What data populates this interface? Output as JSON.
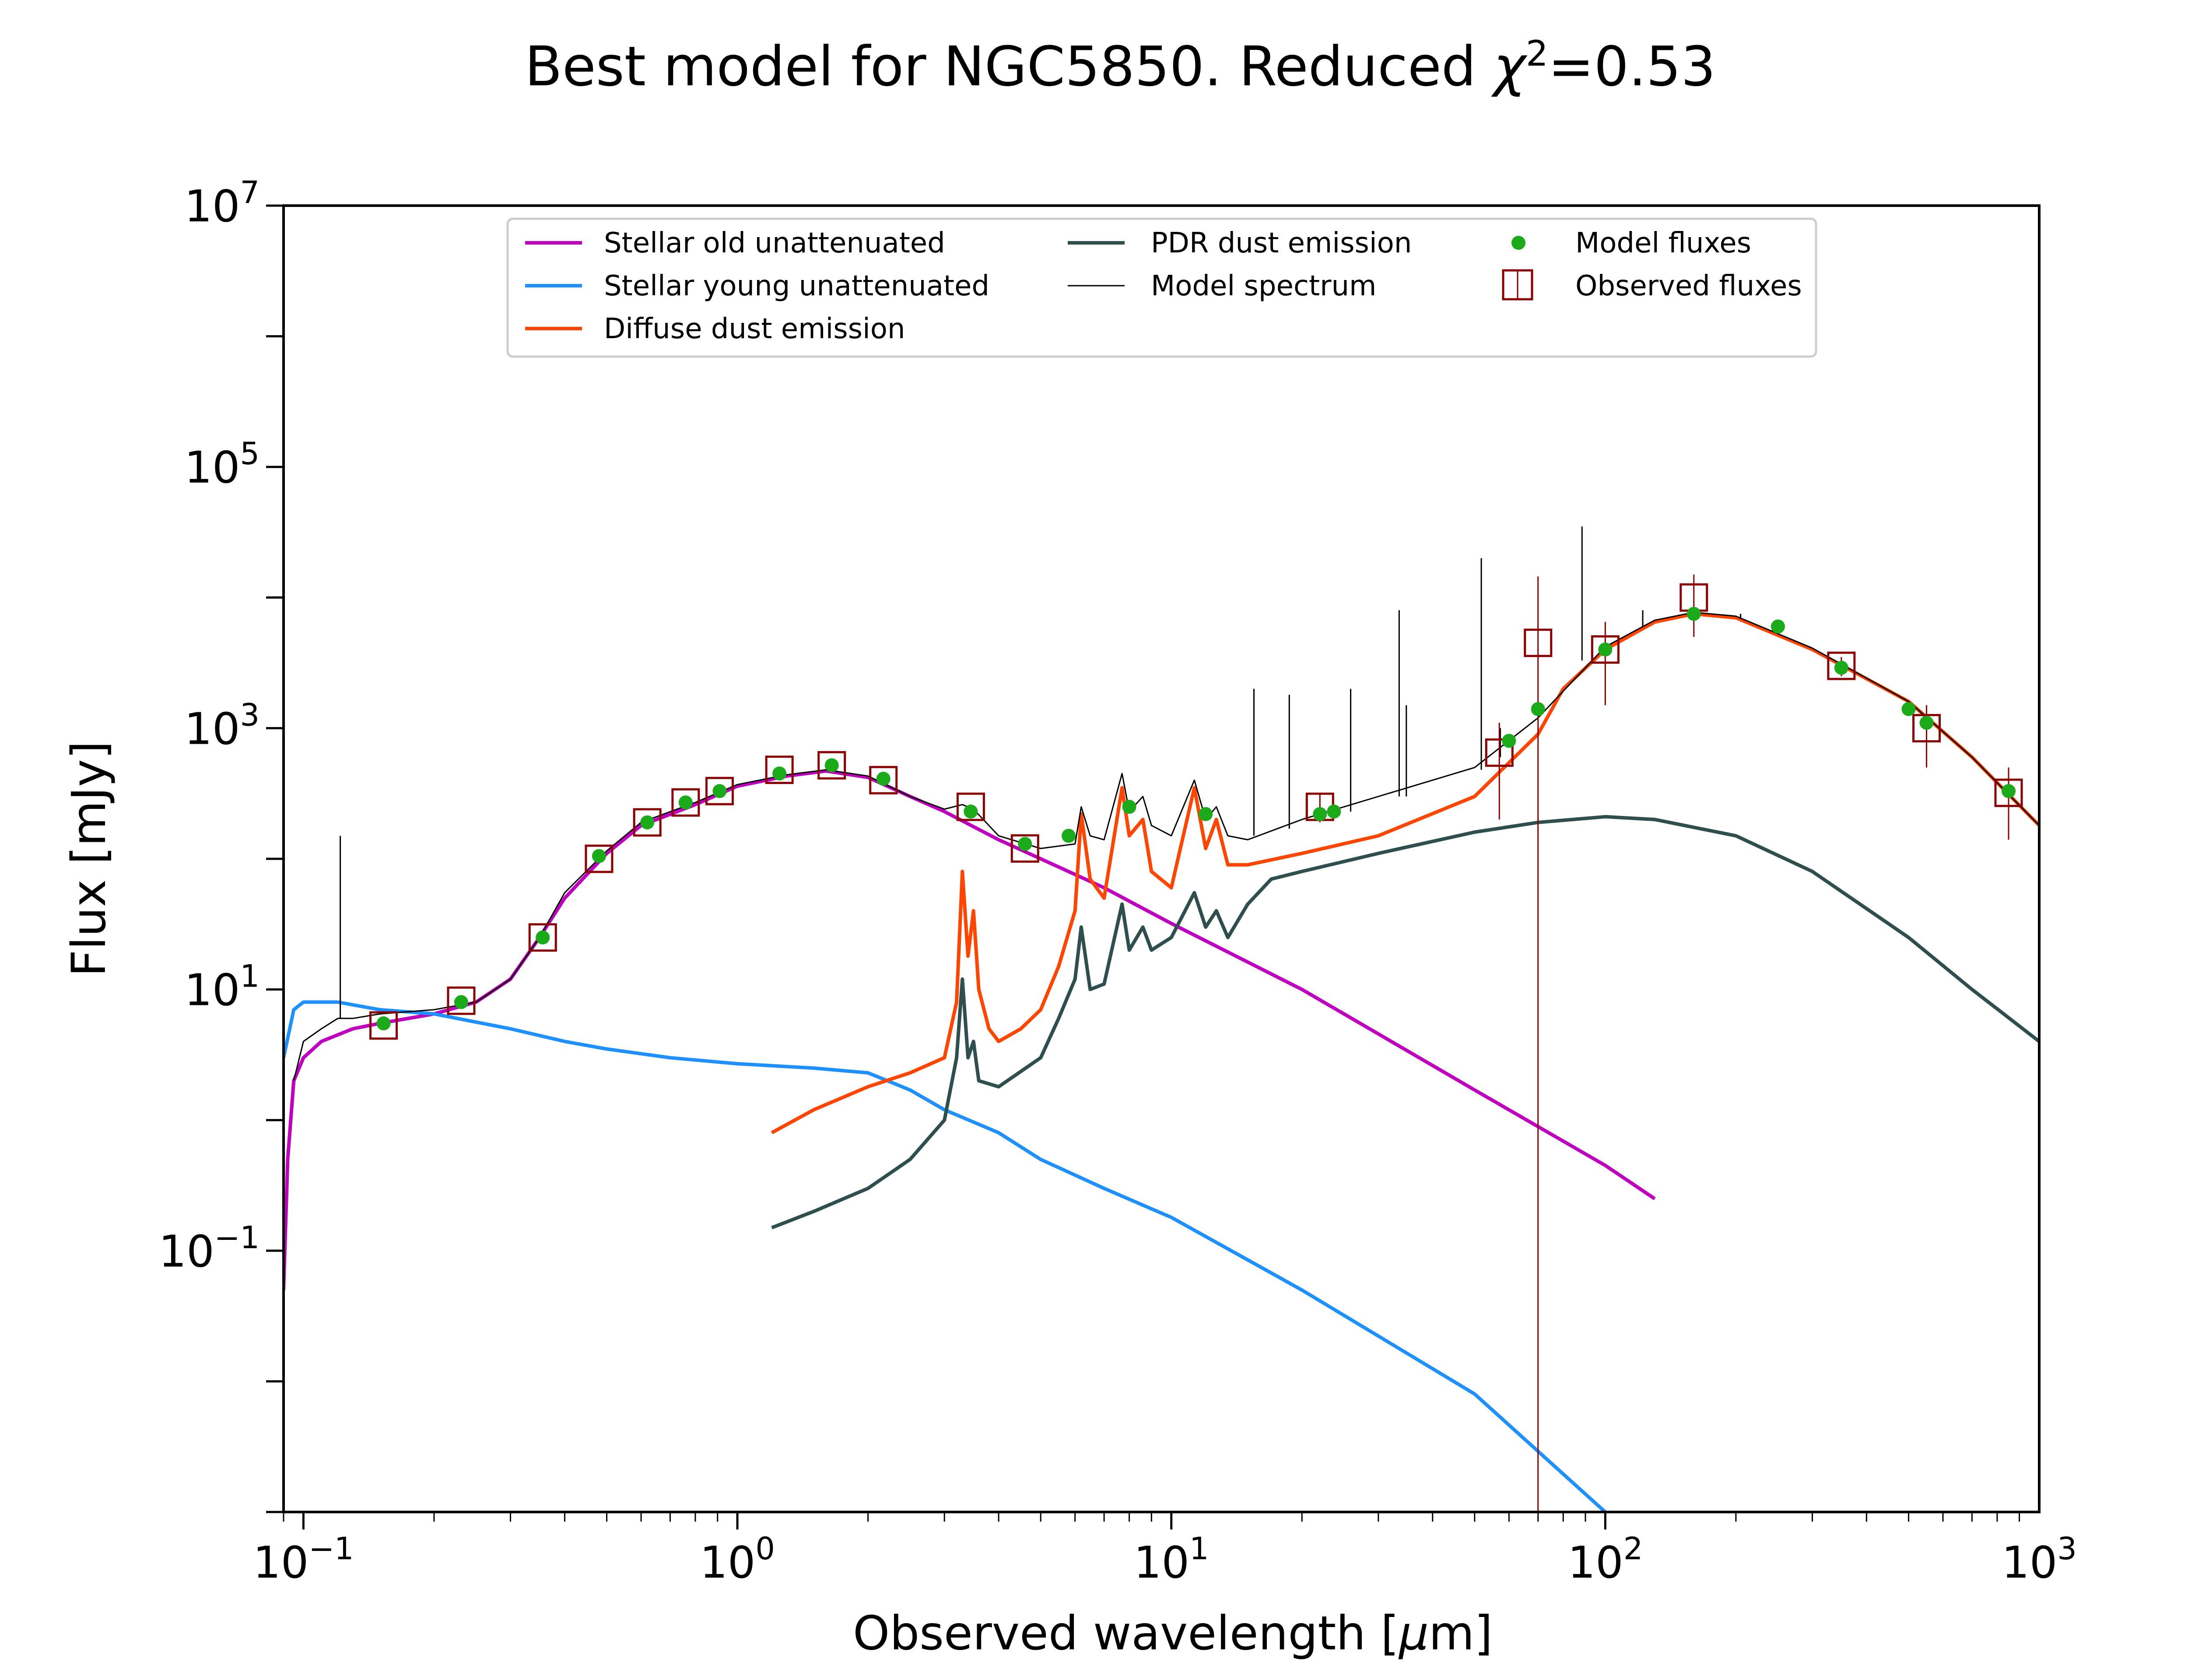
{
  "chart_data": {
    "type": "line",
    "title_prefix": "Best model for NGC5850. Reduced ",
    "title_symbol": "χ",
    "title_exponent": "2",
    "title_suffix": "=0.53",
    "xlabel_prefix": "Observed wavelength [",
    "xlabel_mu": "μ",
    "xlabel_suffix": "m]",
    "ylabel": "Flux [mJy]",
    "xscale": "log",
    "yscale": "log",
    "xlim": [
      0.09,
      1000
    ],
    "ylim": [
      0.001,
      10000000
    ],
    "grid": false,
    "legend_position": "top-center",
    "x_ticks": [
      {
        "base": "10",
        "exp": "−1",
        "value": 0.1
      },
      {
        "base": "10",
        "exp": "0",
        "value": 1
      },
      {
        "base": "10",
        "exp": "1",
        "value": 10
      },
      {
        "base": "10",
        "exp": "2",
        "value": 100
      },
      {
        "base": "10",
        "exp": "3",
        "value": 1000
      }
    ],
    "y_ticks": [
      {
        "base": "10",
        "exp": "−1",
        "value": 0.1
      },
      {
        "base": "10",
        "exp": "1",
        "value": 10
      },
      {
        "base": "10",
        "exp": "3",
        "value": 1000
      },
      {
        "base": "10",
        "exp": "5",
        "value": 100000
      },
      {
        "base": "10",
        "exp": "7",
        "value": 10000000
      }
    ],
    "series": [
      {
        "name": "Stellar old unattenuated",
        "color": "#bf00bf",
        "kind": "line",
        "points": [
          [
            0.09,
            0.05
          ],
          [
            0.092,
            0.5
          ],
          [
            0.095,
            2
          ],
          [
            0.1,
            3
          ],
          [
            0.11,
            4
          ],
          [
            0.13,
            5
          ],
          [
            0.15,
            5.5
          ],
          [
            0.2,
            6.5
          ],
          [
            0.25,
            8
          ],
          [
            0.3,
            12
          ],
          [
            0.35,
            25
          ],
          [
            0.4,
            50
          ],
          [
            0.5,
            110
          ],
          [
            0.6,
            180
          ],
          [
            0.8,
            260
          ],
          [
            1.0,
            360
          ],
          [
            1.3,
            430
          ],
          [
            1.6,
            470
          ],
          [
            2.0,
            420
          ],
          [
            2.5,
            300
          ],
          [
            3.0,
            230
          ],
          [
            4.0,
            140
          ],
          [
            5.0,
            100
          ],
          [
            7.0,
            60
          ],
          [
            10.0,
            32
          ],
          [
            20.0,
            10
          ],
          [
            50.0,
            1.7
          ],
          [
            100.0,
            0.45
          ],
          [
            130.0,
            0.25
          ]
        ]
      },
      {
        "name": "Stellar young unattenuated",
        "color": "#1e90ff",
        "kind": "line",
        "points": [
          [
            0.09,
            3
          ],
          [
            0.095,
            7
          ],
          [
            0.1,
            8
          ],
          [
            0.12,
            8
          ],
          [
            0.15,
            7
          ],
          [
            0.2,
            6.5
          ],
          [
            0.3,
            5
          ],
          [
            0.4,
            4
          ],
          [
            0.5,
            3.5
          ],
          [
            0.7,
            3
          ],
          [
            1.0,
            2.7
          ],
          [
            1.5,
            2.5
          ],
          [
            2.0,
            2.3
          ],
          [
            2.5,
            1.7
          ],
          [
            3.0,
            1.2
          ],
          [
            4.0,
            0.8
          ],
          [
            5.0,
            0.5
          ],
          [
            7.0,
            0.3
          ],
          [
            10.0,
            0.18
          ],
          [
            20.0,
            0.05
          ],
          [
            50.0,
            0.008
          ],
          [
            100.0,
            0.001
          ]
        ]
      },
      {
        "name": "Diffuse dust emission",
        "color": "#ff4500",
        "kind": "line",
        "points": [
          [
            1.2,
            0.8
          ],
          [
            1.5,
            1.2
          ],
          [
            2.0,
            1.8
          ],
          [
            2.5,
            2.3
          ],
          [
            3.0,
            3
          ],
          [
            3.2,
            8
          ],
          [
            3.3,
            80
          ],
          [
            3.4,
            18
          ],
          [
            3.5,
            40
          ],
          [
            3.6,
            10
          ],
          [
            3.8,
            5
          ],
          [
            4.0,
            4
          ],
          [
            4.5,
            5
          ],
          [
            5.0,
            7
          ],
          [
            5.5,
            15
          ],
          [
            6.0,
            40
          ],
          [
            6.2,
            220
          ],
          [
            6.5,
            70
          ],
          [
            7.0,
            50
          ],
          [
            7.7,
            350
          ],
          [
            8.0,
            150
          ],
          [
            8.6,
            200
          ],
          [
            9.0,
            80
          ],
          [
            10.0,
            60
          ],
          [
            11.3,
            350
          ],
          [
            12.0,
            120
          ],
          [
            12.7,
            200
          ],
          [
            13.5,
            90
          ],
          [
            15.0,
            90
          ],
          [
            20.0,
            110
          ],
          [
            30.0,
            150
          ],
          [
            50.0,
            300
          ],
          [
            70.0,
            900
          ],
          [
            80.0,
            2000
          ],
          [
            100.0,
            4000
          ],
          [
            130.0,
            6500
          ],
          [
            160.0,
            7500
          ],
          [
            200.0,
            7000
          ],
          [
            300.0,
            4000
          ],
          [
            500.0,
            1600
          ],
          [
            700.0,
            600
          ],
          [
            1000.0,
            180
          ]
        ]
      },
      {
        "name": "PDR dust emission",
        "color": "#2f4f4f",
        "kind": "line",
        "points": [
          [
            1.2,
            0.15
          ],
          [
            1.5,
            0.2
          ],
          [
            2.0,
            0.3
          ],
          [
            2.5,
            0.5
          ],
          [
            3.0,
            1
          ],
          [
            3.2,
            3
          ],
          [
            3.3,
            12
          ],
          [
            3.4,
            3
          ],
          [
            3.5,
            4
          ],
          [
            3.6,
            2
          ],
          [
            4.0,
            1.8
          ],
          [
            5.0,
            3
          ],
          [
            5.5,
            6
          ],
          [
            6.0,
            12
          ],
          [
            6.2,
            30
          ],
          [
            6.5,
            10
          ],
          [
            7.0,
            11
          ],
          [
            7.7,
            45
          ],
          [
            8.0,
            20
          ],
          [
            8.6,
            30
          ],
          [
            9.0,
            20
          ],
          [
            10.0,
            25
          ],
          [
            11.3,
            55
          ],
          [
            12.0,
            30
          ],
          [
            12.7,
            40
          ],
          [
            13.5,
            25
          ],
          [
            15.0,
            45
          ],
          [
            17.0,
            70
          ],
          [
            20.0,
            80
          ],
          [
            30.0,
            110
          ],
          [
            50.0,
            160
          ],
          [
            70.0,
            190
          ],
          [
            100.0,
            210
          ],
          [
            130.0,
            200
          ],
          [
            200.0,
            150
          ],
          [
            300.0,
            80
          ],
          [
            500.0,
            25
          ],
          [
            700.0,
            10
          ],
          [
            1000.0,
            4
          ]
        ]
      },
      {
        "name": "Model spectrum",
        "color": "#000000",
        "kind": "line",
        "points": [
          [
            0.095,
            2
          ],
          [
            0.1,
            4
          ],
          [
            0.11,
            5
          ],
          [
            0.12,
            6
          ],
          [
            0.13,
            6
          ],
          [
            0.15,
            6.5
          ],
          [
            0.2,
            7
          ],
          [
            0.25,
            8
          ],
          [
            0.3,
            12
          ],
          [
            0.35,
            25
          ],
          [
            0.4,
            55
          ],
          [
            0.5,
            115
          ],
          [
            0.6,
            190
          ],
          [
            0.8,
            270
          ],
          [
            1.0,
            370
          ],
          [
            1.3,
            440
          ],
          [
            1.6,
            480
          ],
          [
            2.0,
            430
          ],
          [
            2.5,
            300
          ],
          [
            3.0,
            240
          ],
          [
            3.3,
            260
          ],
          [
            3.5,
            240
          ],
          [
            4.0,
            150
          ],
          [
            5.0,
            120
          ],
          [
            6.0,
            130
          ],
          [
            6.2,
            250
          ],
          [
            6.5,
            150
          ],
          [
            7.0,
            140
          ],
          [
            7.7,
            450
          ],
          [
            8.0,
            230
          ],
          [
            8.6,
            300
          ],
          [
            9.0,
            180
          ],
          [
            10.0,
            150
          ],
          [
            11.3,
            400
          ],
          [
            12.0,
            200
          ],
          [
            12.7,
            250
          ],
          [
            13.5,
            150
          ],
          [
            15.0,
            140
          ],
          [
            20.0,
            200
          ],
          [
            30.0,
            300
          ],
          [
            50.0,
            500
          ],
          [
            70.0,
            1200
          ],
          [
            100.0,
            4200
          ],
          [
            130.0,
            6700
          ],
          [
            160.0,
            7700
          ],
          [
            200.0,
            7200
          ],
          [
            300.0,
            4100
          ],
          [
            500.0,
            1600
          ],
          [
            700.0,
            600
          ],
          [
            1000.0,
            180
          ]
        ]
      }
    ],
    "spikes": [
      {
        "x": 0.1216,
        "y_base": 6,
        "y_top": 150
      },
      {
        "x": 15.5,
        "y_base": 150,
        "y_top": 2000
      },
      {
        "x": 18.7,
        "y_base": 170,
        "y_top": 1800
      },
      {
        "x": 25.9,
        "y_base": 230,
        "y_top": 2000
      },
      {
        "x": 33.5,
        "y_base": 300,
        "y_top": 8000
      },
      {
        "x": 34.8,
        "y_base": 300,
        "y_top": 1500
      },
      {
        "x": 51.8,
        "y_base": 480,
        "y_top": 20000
      },
      {
        "x": 57.3,
        "y_base": 600,
        "y_top": 1000
      },
      {
        "x": 88.4,
        "y_base": 3300,
        "y_top": 35000
      },
      {
        "x": 122.0,
        "y_base": 6000,
        "y_top": 8000
      },
      {
        "x": 205.0,
        "y_base": 7000,
        "y_top": 7500
      }
    ],
    "model_fluxes": {
      "name": "Model fluxes",
      "color": "#1aaa1a",
      "points": [
        [
          0.153,
          5.5
        ],
        [
          0.231,
          8
        ],
        [
          0.356,
          25
        ],
        [
          0.48,
          105
        ],
        [
          0.62,
          190
        ],
        [
          0.76,
          270
        ],
        [
          0.91,
          330
        ],
        [
          1.25,
          450
        ],
        [
          1.65,
          520
        ],
        [
          2.17,
          410
        ],
        [
          3.45,
          230
        ],
        [
          4.6,
          130
        ],
        [
          5.8,
          150
        ],
        [
          8.0,
          250
        ],
        [
          12.0,
          220
        ],
        [
          22.0,
          220
        ],
        [
          23.7,
          230
        ],
        [
          60.0,
          800
        ],
        [
          70.0,
          1400
        ],
        [
          100.0,
          4000
        ],
        [
          160.0,
          7500
        ],
        [
          250.0,
          6000
        ],
        [
          350.0,
          2900
        ],
        [
          500.0,
          1400
        ],
        [
          550.0,
          1100
        ],
        [
          850.0,
          330
        ]
      ]
    },
    "observed_fluxes": {
      "name": "Observed fluxes",
      "color": "#8b0000",
      "points": [
        [
          0.153,
          5.3,
          0.3
        ],
        [
          0.231,
          8.2,
          0.4
        ],
        [
          0.356,
          25,
          1
        ],
        [
          0.48,
          100,
          3
        ],
        [
          0.62,
          190,
          5
        ],
        [
          0.76,
          270,
          7
        ],
        [
          0.91,
          330,
          8
        ],
        [
          1.25,
          480,
          15
        ],
        [
          1.65,
          520,
          15
        ],
        [
          2.17,
          400,
          15
        ],
        [
          3.45,
          250,
          10
        ],
        [
          4.6,
          120,
          8
        ],
        [
          22.0,
          250,
          60
        ],
        [
          57.0,
          650,
          450
        ],
        [
          70.0,
          4500,
          10000
        ],
        [
          100.0,
          4000,
          2500
        ],
        [
          160.0,
          10000,
          5000
        ],
        [
          350.0,
          3000,
          500
        ],
        [
          550.0,
          1000,
          500
        ],
        [
          850.0,
          320,
          180
        ]
      ]
    },
    "legend": [
      "Stellar old unattenuated",
      "Stellar young unattenuated",
      "Diffuse dust emission",
      "PDR dust emission",
      "Model spectrum",
      "Model fluxes",
      "Observed fluxes"
    ]
  }
}
